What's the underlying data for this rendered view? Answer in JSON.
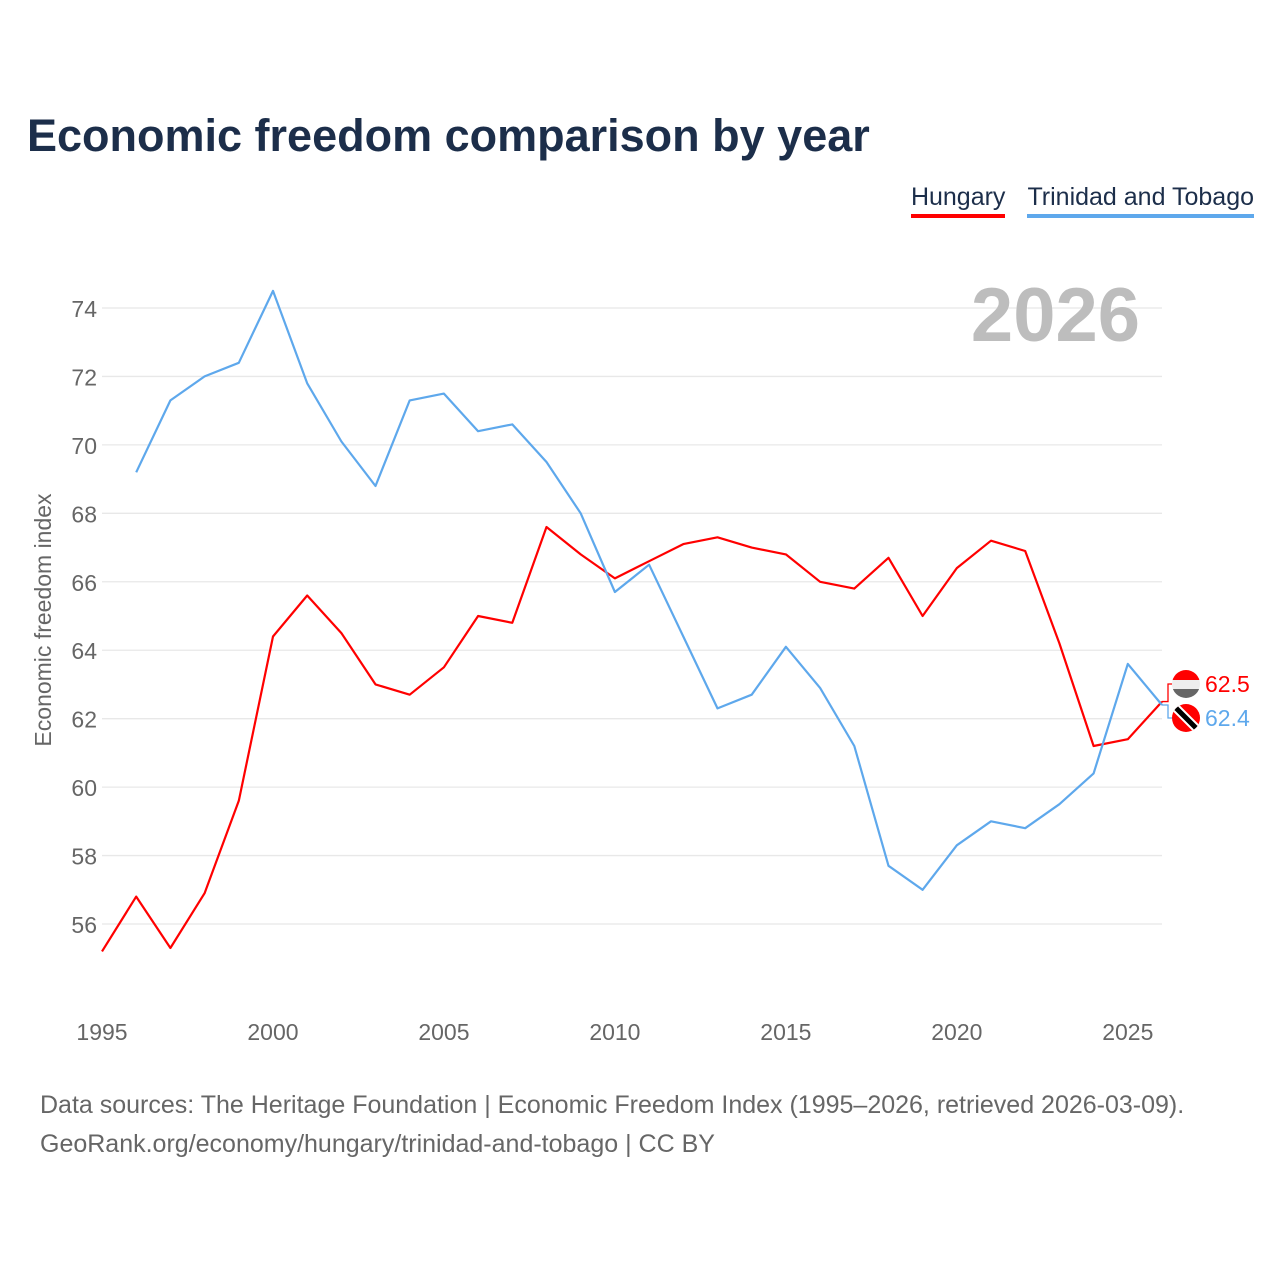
{
  "chart_data": {
    "type": "line",
    "title": "Economic freedom comparison by year",
    "ylabel": "Economic freedom index",
    "xlabel": "",
    "xlim": [
      1995,
      2026
    ],
    "ylim": [
      54,
      75.5
    ],
    "yticks": [
      56,
      58,
      60,
      62,
      64,
      66,
      68,
      70,
      72,
      74
    ],
    "xticks": [
      1995,
      2000,
      2005,
      2010,
      2015,
      2020,
      2025
    ],
    "grid": true,
    "legend_position": "top-right",
    "year_label": "2026",
    "series": [
      {
        "name": "Hungary",
        "color": "#ff0000",
        "end_label": "62.5",
        "x": [
          1995,
          1996,
          1997,
          1998,
          1999,
          2000,
          2001,
          2002,
          2003,
          2004,
          2005,
          2006,
          2007,
          2008,
          2009,
          2010,
          2011,
          2012,
          2013,
          2014,
          2015,
          2016,
          2017,
          2018,
          2019,
          2020,
          2021,
          2022,
          2023,
          2024,
          2025,
          2026
        ],
        "values": [
          55.2,
          56.8,
          55.3,
          56.9,
          59.6,
          64.4,
          65.6,
          64.5,
          63.0,
          62.7,
          63.5,
          65.0,
          64.8,
          67.6,
          66.8,
          66.1,
          66.6,
          67.1,
          67.3,
          67.0,
          66.8,
          66.0,
          65.8,
          66.7,
          65.0,
          66.4,
          67.2,
          66.9,
          64.2,
          61.2,
          61.4,
          62.5
        ]
      },
      {
        "name": "Trinidad and Tobago",
        "color": "#5ea8ec",
        "end_label": "62.4",
        "x": [
          1996,
          1997,
          1998,
          1999,
          2000,
          2001,
          2002,
          2003,
          2004,
          2005,
          2006,
          2007,
          2008,
          2009,
          2010,
          2011,
          2012,
          2013,
          2014,
          2015,
          2016,
          2017,
          2018,
          2019,
          2020,
          2021,
          2022,
          2023,
          2024,
          2025,
          2026
        ],
        "values": [
          69.2,
          71.3,
          72.0,
          72.4,
          74.5,
          71.8,
          70.1,
          68.8,
          71.3,
          71.5,
          70.4,
          70.6,
          69.5,
          68.0,
          65.7,
          66.5,
          64.4,
          62.3,
          62.7,
          64.1,
          62.9,
          61.2,
          57.7,
          57.0,
          58.3,
          59.0,
          58.8,
          59.5,
          60.4,
          63.6,
          62.4
        ]
      }
    ]
  },
  "footer": {
    "line1": "Data sources: The Heritage Foundation | Economic Freedom Index (1995–2026, retrieved 2026-03-09).",
    "line2": "GeoRank.org/economy/hungary/trinidad-and-tobago | CC BY"
  }
}
